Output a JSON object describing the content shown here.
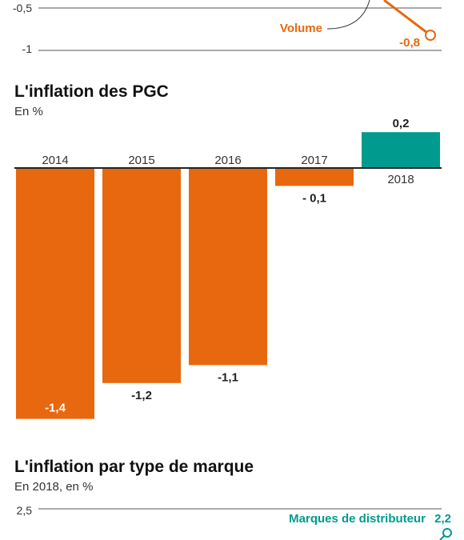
{
  "colors": {
    "negative": "#e8680f",
    "positive": "#009a8e",
    "text": "#222222",
    "axis": "#333333"
  },
  "top_fragment": {
    "y_ticks": [
      "-0,5",
      "-1"
    ],
    "series_label": "Volume",
    "last_value": "-0,8"
  },
  "chart_data": [
    {
      "type": "line",
      "title": "",
      "yticks": [
        -0.5,
        -1
      ],
      "series": [
        {
          "name": "Volume",
          "values": [
            -0.8
          ]
        }
      ]
    },
    {
      "type": "bar",
      "title": "L'inflation des PGC",
      "subtitle": "En %",
      "categories": [
        "2014",
        "2015",
        "2016",
        "2017",
        "2018"
      ],
      "values": [
        -1.4,
        -1.2,
        -1.1,
        -0.1,
        0.2
      ],
      "value_labels": [
        "-1,4",
        "-1,2",
        "-1,1",
        "- 0,1",
        "0,2"
      ],
      "ylabel": "",
      "ylim": [
        -1.4,
        0.2
      ],
      "grid": false
    },
    {
      "type": "line",
      "title": "L'inflation par type de marque",
      "subtitle": "En 2018, en %",
      "yticks": [
        2.5
      ],
      "series": [
        {
          "name": "Marques de distributeur",
          "values": [
            2.2
          ]
        }
      ]
    }
  ]
}
